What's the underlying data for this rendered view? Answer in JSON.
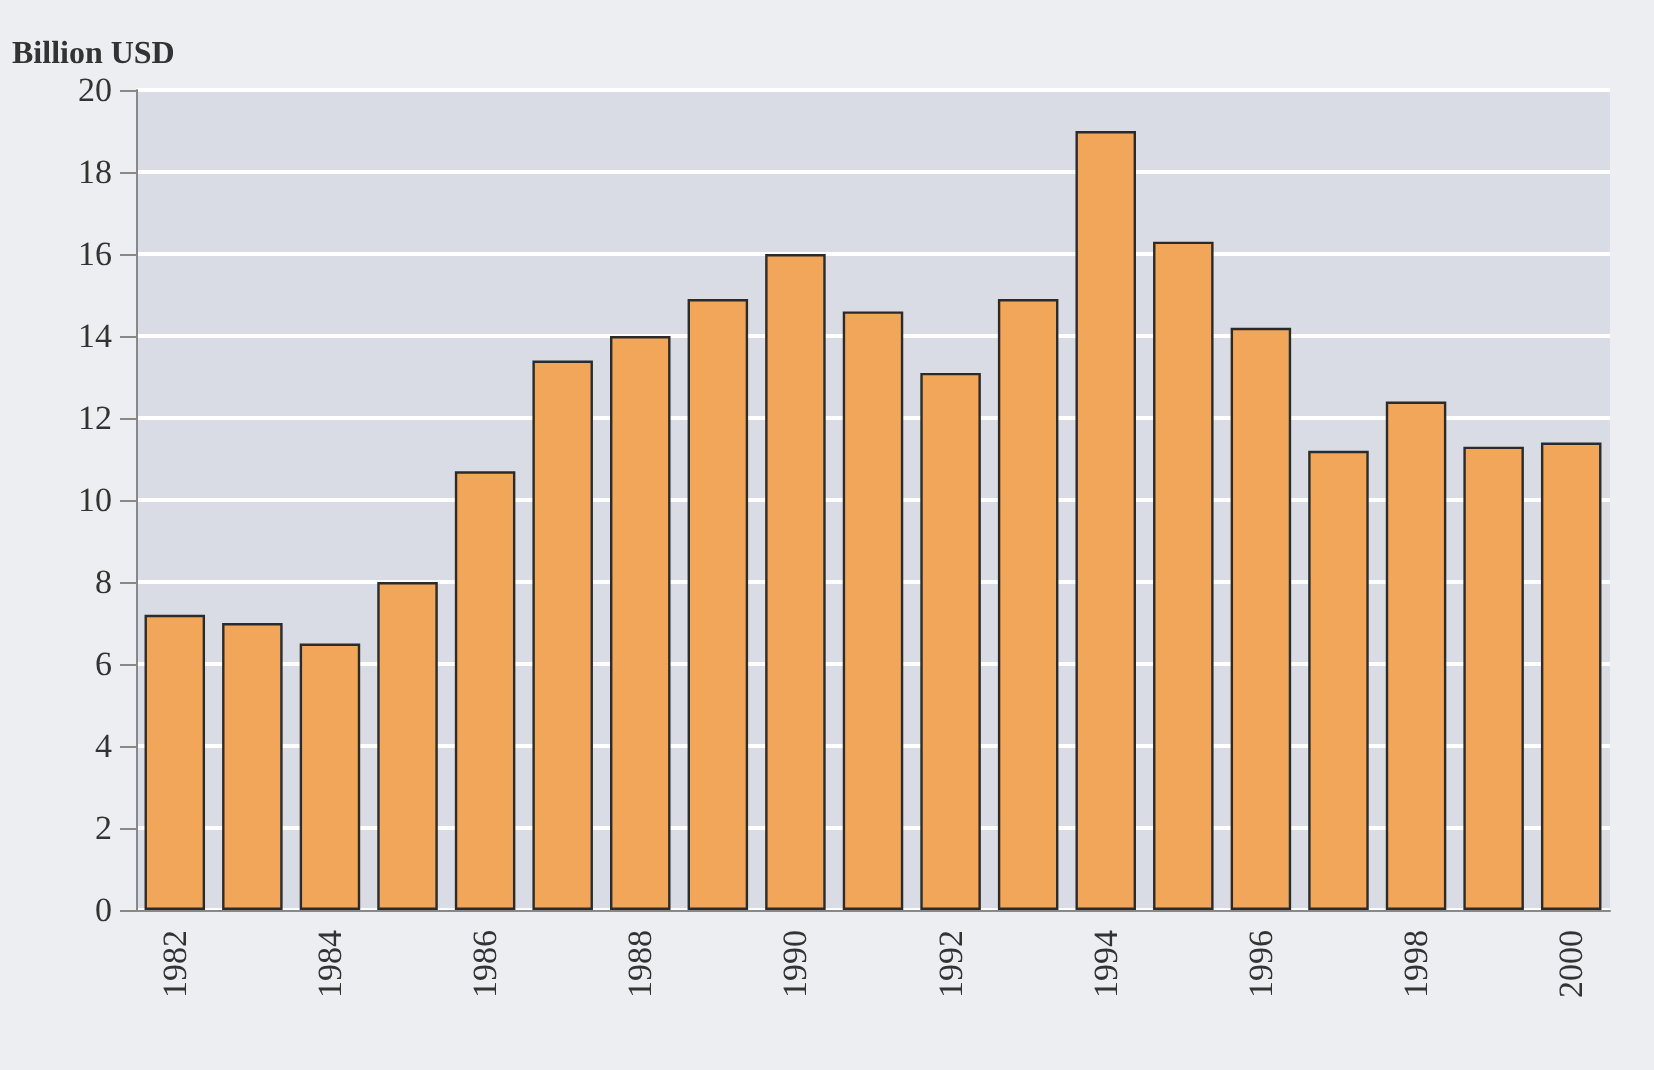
{
  "chart_data": {
    "type": "bar",
    "ylabel": "Billion USD",
    "categories": [
      "1982",
      null,
      "1984",
      null,
      "1986",
      null,
      "1988",
      null,
      "1990",
      null,
      "1992",
      null,
      "1994",
      null,
      "1996",
      null,
      "1998",
      null,
      "2000"
    ],
    "values": [
      7.2,
      7.0,
      6.5,
      8.0,
      10.7,
      13.4,
      14.0,
      14.9,
      16.0,
      14.6,
      13.1,
      14.9,
      19.0,
      16.3,
      14.2,
      11.2,
      12.4,
      11.3,
      11.4
    ],
    "color": "#f2a65a",
    "ylim": [
      0,
      20
    ],
    "yticks": [
      0,
      2,
      4,
      6,
      8,
      10,
      12,
      14,
      16,
      18,
      20
    ],
    "grid": "y"
  }
}
